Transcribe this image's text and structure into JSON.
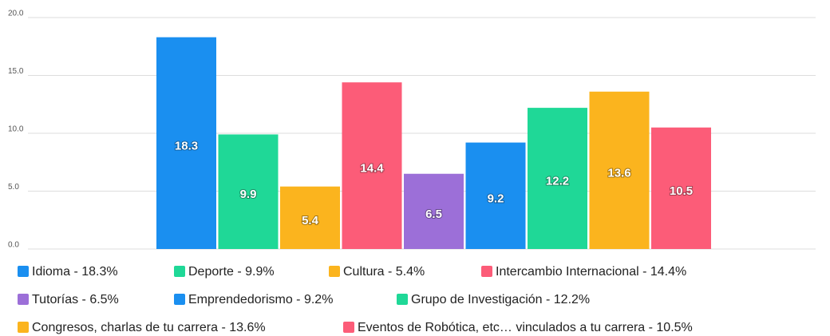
{
  "chart_data": {
    "type": "bar",
    "categories": [
      "Idioma - 18.3%",
      "Deporte - 9.9%",
      "Cultura - 5.4%",
      "Intercambio Internacional - 14.4%",
      "Tutorías - 6.5%",
      "Emprendedorismo - 9.2%",
      "Grupo de Investigación - 12.2%",
      "Congresos, charlas de tu carrera - 13.6%",
      "Eventos de Robótica, etc… vinculados a tu carrera - 10.5%"
    ],
    "values": [
      18.3,
      9.9,
      5.4,
      14.4,
      6.5,
      9.2,
      12.2,
      13.6,
      10.5
    ],
    "colors": [
      "#1a8ff0",
      "#1fd897",
      "#fbb41e",
      "#fc5c78",
      "#9c6fd8",
      "#1a8ff0",
      "#1fd897",
      "#fbb41e",
      "#fc5c78"
    ],
    "ylim": [
      0,
      20
    ],
    "yticks": [
      {
        "value": 0,
        "label": "0.0"
      },
      {
        "value": 5,
        "label": "5.0"
      },
      {
        "value": 10,
        "label": "10.0"
      },
      {
        "value": 15,
        "label": "15.0"
      },
      {
        "value": 20,
        "label": "20.0"
      }
    ],
    "grid": true
  }
}
